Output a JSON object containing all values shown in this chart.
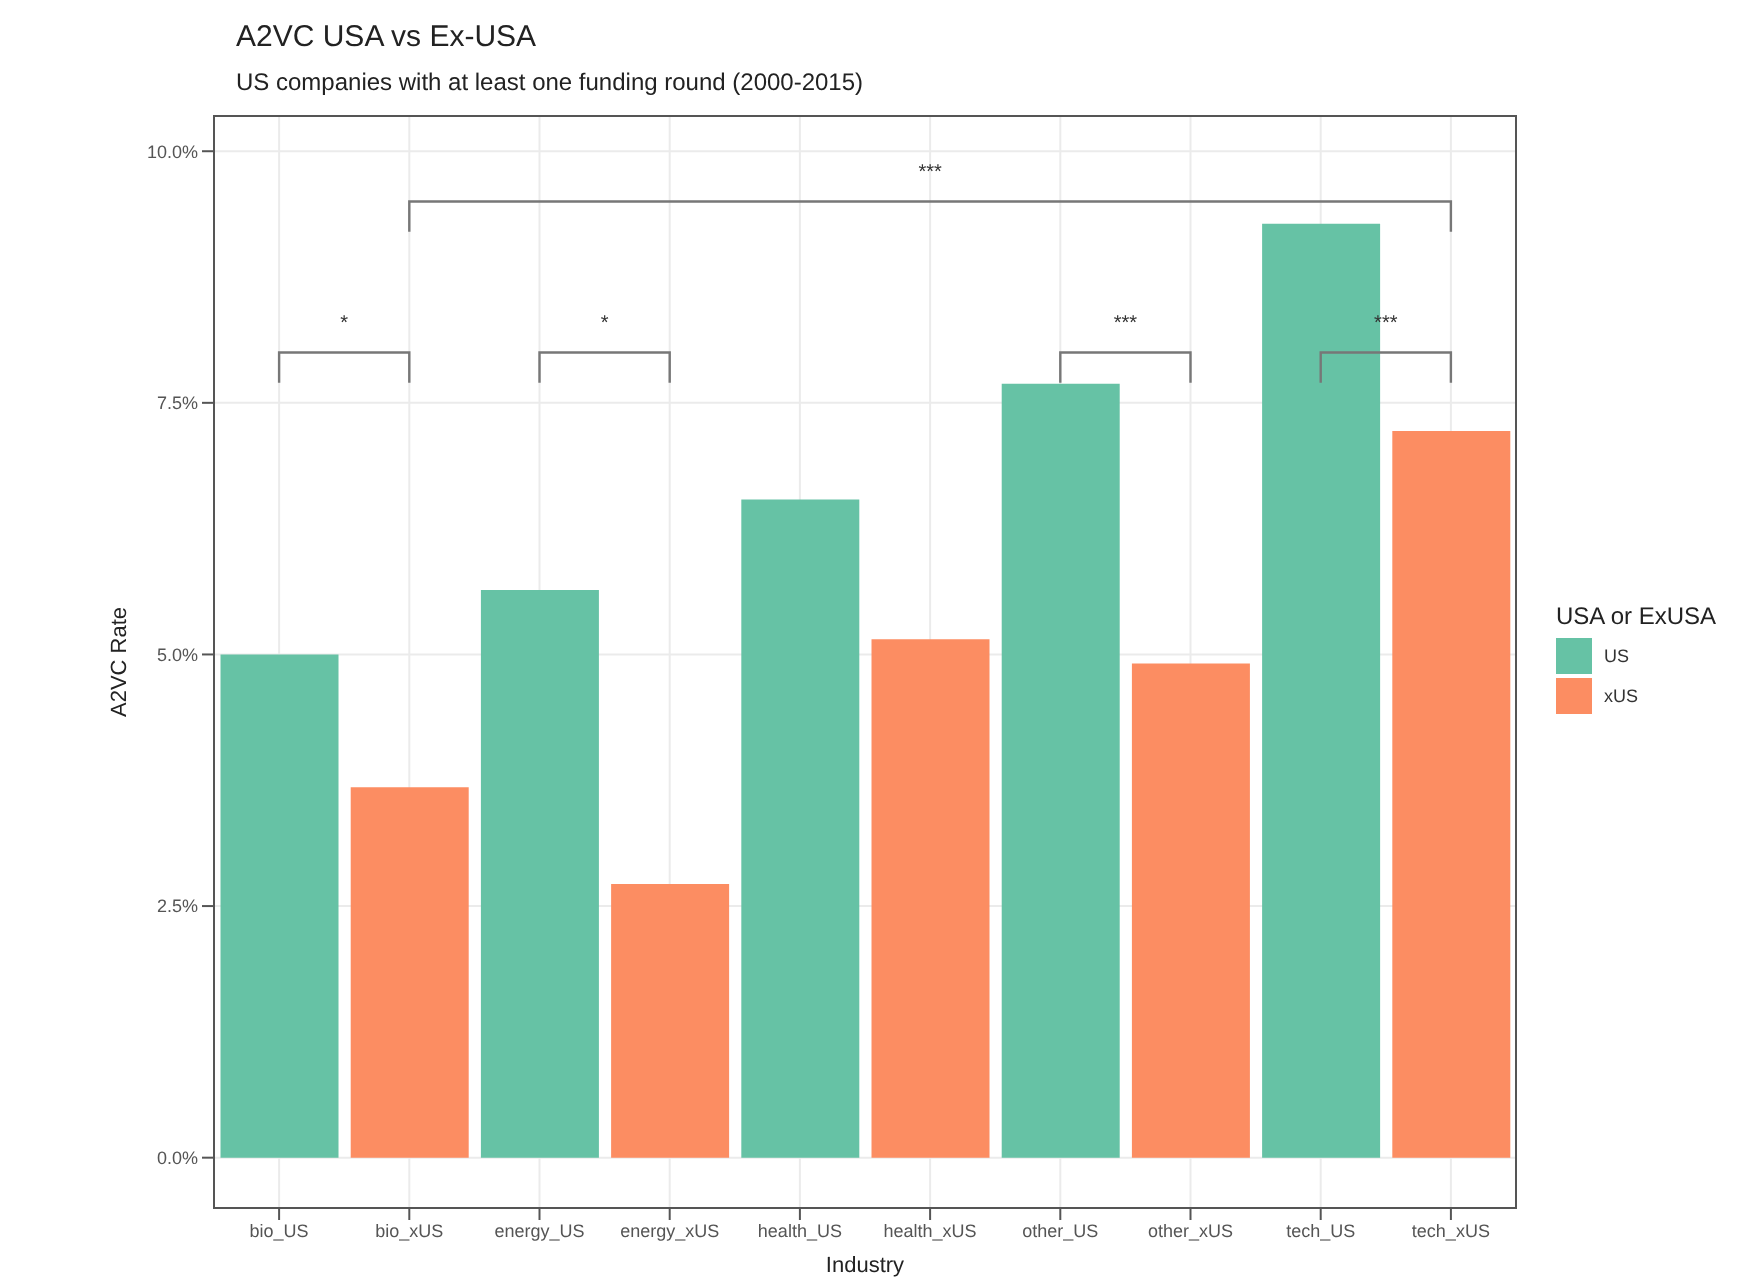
{
  "chart_data": {
    "type": "bar",
    "title": "A2VC USA vs Ex-USA",
    "subtitle": "US companies with at least one funding round (2000-2015)",
    "xlabel": "Industry",
    "ylabel": "A2VC Rate",
    "legend_title": "USA or ExUSA",
    "categories": [
      "bio_US",
      "bio_xUS",
      "energy_US",
      "energy_xUS",
      "health_US",
      "health_xUS",
      "other_US",
      "other_xUS",
      "tech_US",
      "tech_xUS"
    ],
    "series": [
      {
        "name": "US",
        "color": "#66c2a5",
        "values": [
          5.0,
          null,
          5.64,
          null,
          6.54,
          null,
          7.69,
          null,
          9.28,
          null
        ]
      },
      {
        "name": "xUS",
        "color": "#fc8d62",
        "values": [
          null,
          3.68,
          null,
          2.72,
          null,
          5.15,
          null,
          4.91,
          null,
          7.22
        ]
      }
    ],
    "ylim": [
      -0.5,
      10.35
    ],
    "yticks": [
      {
        "value": 0,
        "label": "0.0%"
      },
      {
        "value": 2.5,
        "label": "2.5%"
      },
      {
        "value": 5,
        "label": "5.0%"
      },
      {
        "value": 7.5,
        "label": "7.5%"
      },
      {
        "value": 10,
        "label": "10.0%"
      }
    ],
    "grid": true,
    "legend": "right",
    "annotations": [
      "*",
      "*",
      "***",
      "***",
      "***"
    ]
  }
}
